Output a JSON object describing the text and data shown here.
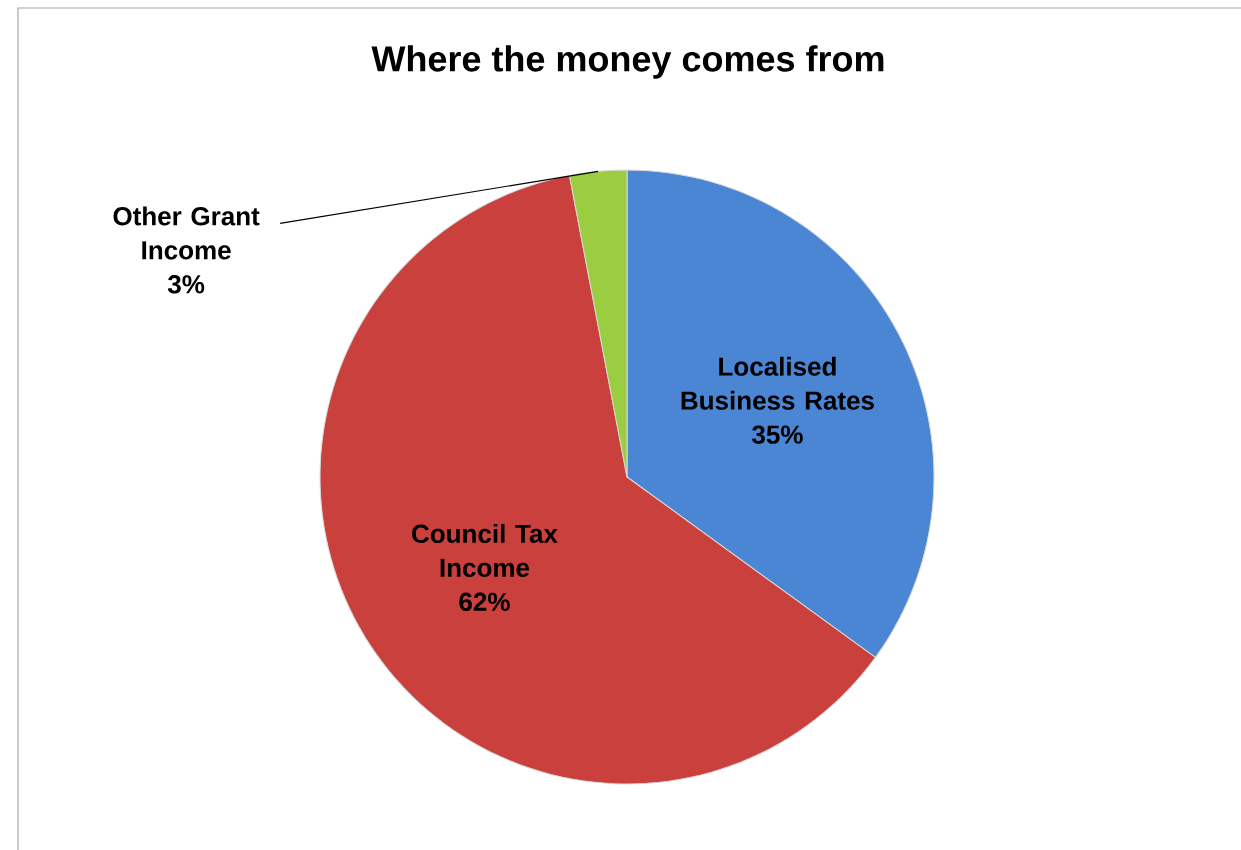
{
  "chart_data": {
    "type": "pie",
    "title": "Where the money comes from",
    "categories": [
      "Localised Business Rates",
      "Council Tax Income",
      "Other Grant Income"
    ],
    "values": [
      35,
      62,
      3
    ],
    "colors": [
      "#4a86d4",
      "#c9403c",
      "#9acd40"
    ],
    "value_labels": [
      "35%",
      "62%",
      "3%"
    ]
  }
}
